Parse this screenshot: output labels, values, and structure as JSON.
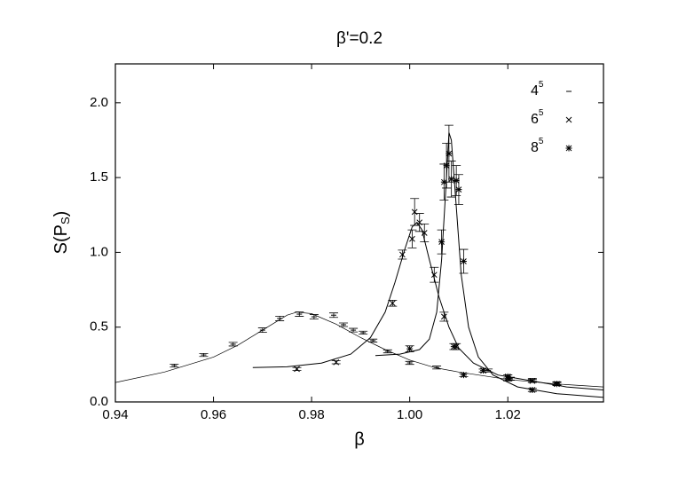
{
  "chart_data": {
    "type": "scatter",
    "title": "β'=0.2",
    "xlabel": "β",
    "ylabel": [
      "S(P",
      "S",
      ")"
    ],
    "xlim": [
      0.94,
      1.0395
    ],
    "ylim": [
      0,
      2.26
    ],
    "xticks": [
      0.94,
      0.96,
      0.98,
      {
        "value": 1.0,
        "label": "1.00"
      },
      1.02
    ],
    "yticks": [
      {
        "value": 0,
        "label": "0.0"
      },
      0.5,
      {
        "value": 1,
        "label": "1.0"
      },
      1.5,
      {
        "value": 2,
        "label": "2.0"
      }
    ],
    "legend": "upper right",
    "series": [
      {
        "name": "4",
        "power": "5",
        "marker": "dash",
        "color": "#000000",
        "x": [
          0.952,
          0.958,
          0.964,
          0.97,
          0.9735,
          0.9775,
          0.9805,
          0.9845,
          0.9865,
          0.9885,
          0.9905,
          0.9925,
          0.9955,
          1.0,
          1.0055,
          1.016,
          1.0205,
          1.025,
          1.03
        ],
        "values": [
          0.243,
          0.314,
          0.386,
          0.48,
          0.558,
          0.587,
          0.569,
          0.58,
          0.516,
          0.48,
          0.463,
          0.41,
          0.338,
          0.261,
          0.23,
          0.21,
          0.155,
          0.148,
          0.125
        ],
        "errors": [
          0.01,
          0.01,
          0.012,
          0.015,
          0.015,
          0.015,
          0.015,
          0.015,
          0.012,
          0.012,
          0.01,
          0.01,
          0.01,
          0.01,
          0.01,
          0.01,
          0.01,
          0.01,
          0.01
        ],
        "fit_x": [
          0.94,
          0.95,
          0.96,
          0.965,
          0.97,
          0.975,
          0.977,
          0.98,
          0.985,
          0.99,
          0.995,
          1.0,
          1.005,
          1.01,
          1.02,
          1.03,
          1.0395
        ],
        "fit_y": [
          0.13,
          0.2,
          0.3,
          0.38,
          0.48,
          0.58,
          0.6,
          0.59,
          0.52,
          0.43,
          0.35,
          0.28,
          0.23,
          0.2,
          0.15,
          0.12,
          0.1
        ]
      },
      {
        "name": "6",
        "power": "5",
        "marker": "cross",
        "color": "#000000",
        "x": [
          0.977,
          0.985,
          0.9965,
          0.9985,
          1.0005,
          1.001,
          1.002,
          1.003,
          1.005,
          1.007,
          1.0095,
          1.015,
          1.02,
          1.025,
          1.03
        ],
        "values": [
          0.22,
          0.265,
          0.66,
          0.985,
          1.09,
          1.27,
          1.2,
          1.13,
          0.85,
          0.57,
          0.37,
          0.21,
          0.16,
          0.14,
          0.12
        ],
        "errors": [
          0.01,
          0.01,
          0.02,
          0.03,
          0.06,
          0.09,
          0.06,
          0.06,
          0.05,
          0.03,
          0.02,
          0.01,
          0.02,
          0.01,
          0.01
        ],
        "fit_x": [
          0.968,
          0.975,
          0.982,
          0.988,
          0.992,
          0.995,
          0.997,
          0.999,
          1.0005,
          1.0015,
          1.0025,
          1.004,
          1.006,
          1.008,
          1.01,
          1.013,
          1.018,
          1.025,
          1.032,
          1.0395
        ],
        "fit_y": [
          0.23,
          0.235,
          0.26,
          0.32,
          0.43,
          0.6,
          0.8,
          1.02,
          1.17,
          1.2,
          1.15,
          0.95,
          0.7,
          0.5,
          0.36,
          0.26,
          0.18,
          0.14,
          0.1,
          0.08
        ]
      },
      {
        "name": "8",
        "power": "5",
        "marker": "star",
        "color": "#000000",
        "x": [
          1.0,
          1.0065,
          1.007,
          1.0075,
          1.008,
          1.0085,
          1.0095,
          1.01,
          1.011,
          1.009,
          1.011,
          1.015,
          1.02,
          1.025,
          1.03
        ],
        "values": [
          0.355,
          1.07,
          1.47,
          1.58,
          1.66,
          1.49,
          1.48,
          1.42,
          0.94,
          0.37,
          0.18,
          0.21,
          0.17,
          0.08,
          0.12
        ],
        "errors": [
          0.02,
          0.08,
          0.12,
          0.15,
          0.19,
          0.12,
          0.1,
          0.1,
          0.08,
          0.02,
          0.01,
          0.01,
          0.01,
          0.01,
          0.01
        ],
        "fit_x": [
          0.993,
          0.998,
          1.002,
          1.004,
          1.0055,
          1.0065,
          1.0075,
          1.008,
          1.0085,
          1.0095,
          1.0105,
          1.012,
          1.014,
          1.017,
          1.022,
          1.03,
          1.0395
        ],
        "fit_y": [
          0.31,
          0.32,
          0.35,
          0.42,
          0.6,
          0.95,
          1.5,
          1.8,
          1.75,
          1.3,
          0.85,
          0.5,
          0.3,
          0.18,
          0.1,
          0.055,
          0.03
        ]
      }
    ]
  }
}
